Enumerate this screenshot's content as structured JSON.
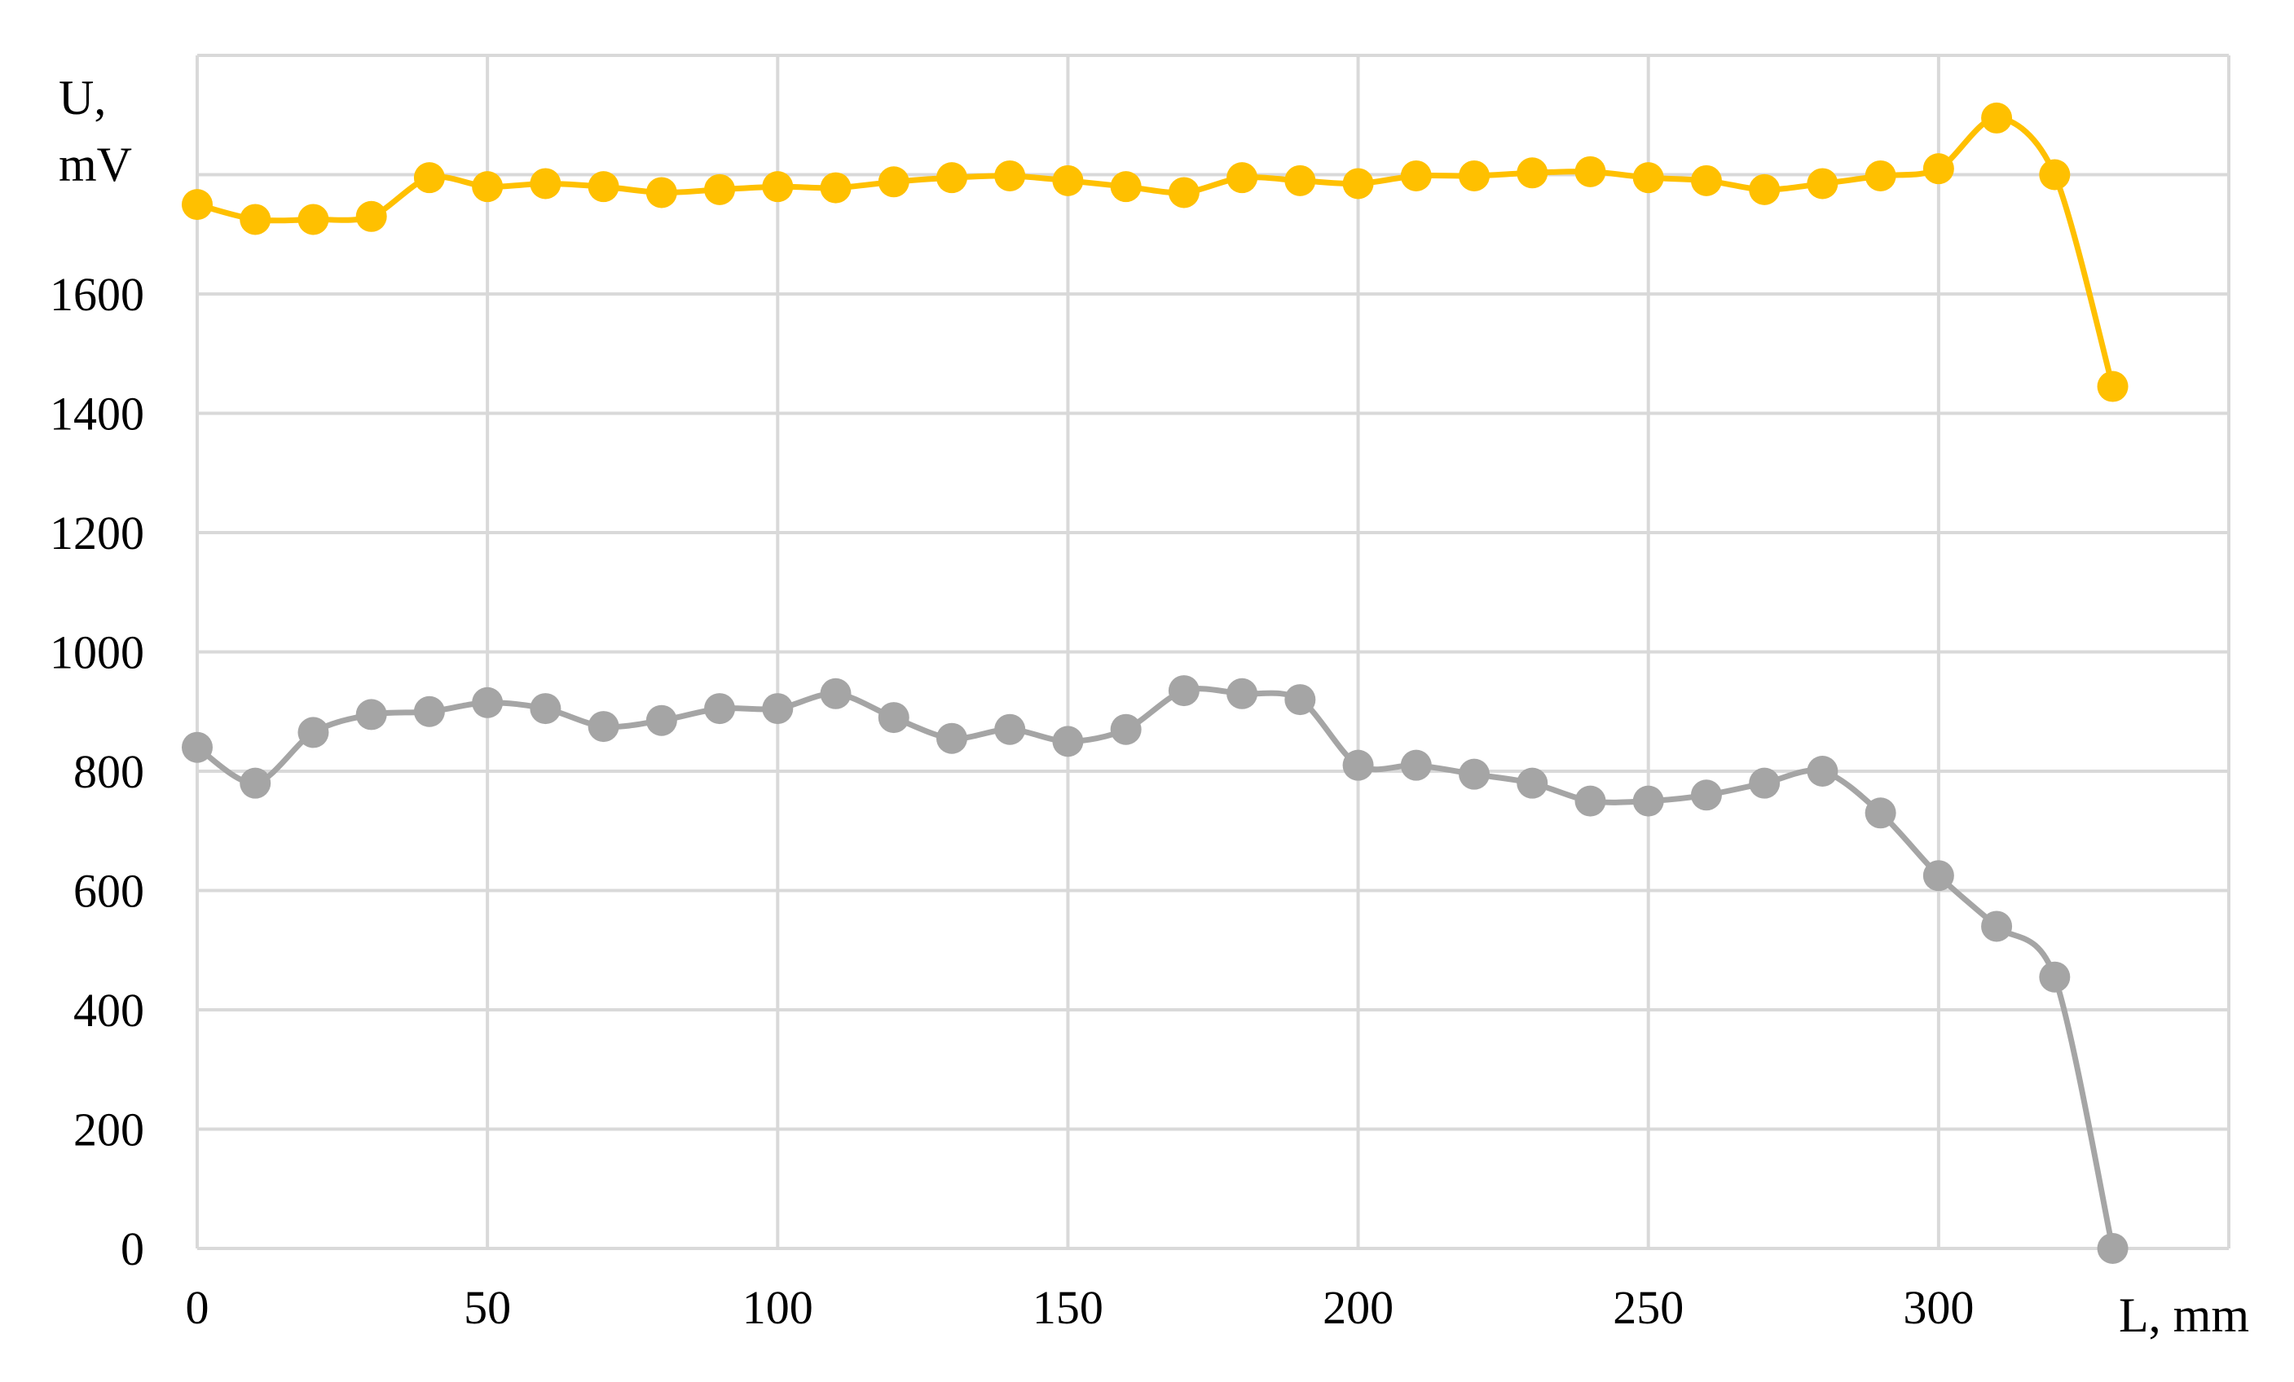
{
  "chart_data": {
    "type": "line",
    "xlabel": "L, mm",
    "ylabel_line1": "U,",
    "ylabel_line2": "mV",
    "xlim": [
      0,
      350
    ],
    "ylim": [
      0,
      2000
    ],
    "xticks": [
      0,
      50,
      100,
      150,
      200,
      250,
      300
    ],
    "yticks": [
      0,
      200,
      400,
      600,
      800,
      1000,
      1200,
      1400,
      1600
    ],
    "grid": true,
    "legend": "none",
    "x": [
      0,
      10,
      20,
      30,
      40,
      50,
      60,
      70,
      80,
      90,
      100,
      110,
      120,
      130,
      140,
      150,
      160,
      170,
      180,
      190,
      200,
      210,
      220,
      230,
      240,
      250,
      260,
      270,
      280,
      290,
      300,
      310,
      320,
      330
    ],
    "series": [
      {
        "color": "#FFC000",
        "values": [
          1750,
          1725,
          1725,
          1730,
          1795,
          1780,
          1785,
          1780,
          1770,
          1775,
          1780,
          1778,
          1788,
          1795,
          1798,
          1790,
          1780,
          1770,
          1795,
          1790,
          1785,
          1798,
          1798,
          1803,
          1805,
          1795,
          1790,
          1775,
          1785,
          1798,
          1810,
          1895,
          1800,
          1445
        ]
      },
      {
        "color": "#A5A5A5",
        "values": [
          840,
          780,
          865,
          895,
          900,
          915,
          905,
          875,
          885,
          905,
          905,
          930,
          890,
          855,
          870,
          850,
          870,
          935,
          930,
          920,
          810,
          810,
          795,
          780,
          750,
          750,
          760,
          780,
          800,
          730,
          625,
          540,
          455,
          0
        ]
      }
    ]
  }
}
